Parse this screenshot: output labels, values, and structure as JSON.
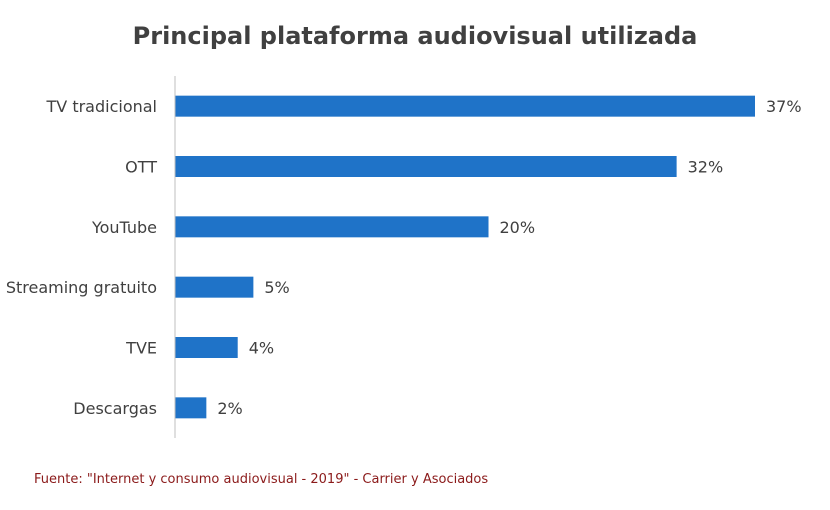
{
  "chart_data": {
    "type": "bar",
    "orientation": "horizontal",
    "title": "Principal plataforma audiovisual utilizada",
    "categories": [
      "TV tradicional",
      "OTT",
      "YouTube",
      "Streaming gratuito",
      "TVE",
      "Descargas"
    ],
    "values": [
      37,
      32,
      20,
      5,
      4,
      2
    ],
    "data_labels": [
      "37%",
      "32%",
      "20%",
      "5%",
      "4%",
      "2%"
    ],
    "unit": "%",
    "xlim": [
      0,
      37
    ],
    "grid": false,
    "legend": "none",
    "bar_color": "#1f73c8"
  },
  "source": "Fuente: \"Internet y consumo audiovisual - 2019\" - Carrier y Asociados",
  "colors": {
    "title": "#404040",
    "labels": "#404040",
    "source": "#8b1a1a",
    "axis": "#bfbfbf"
  }
}
